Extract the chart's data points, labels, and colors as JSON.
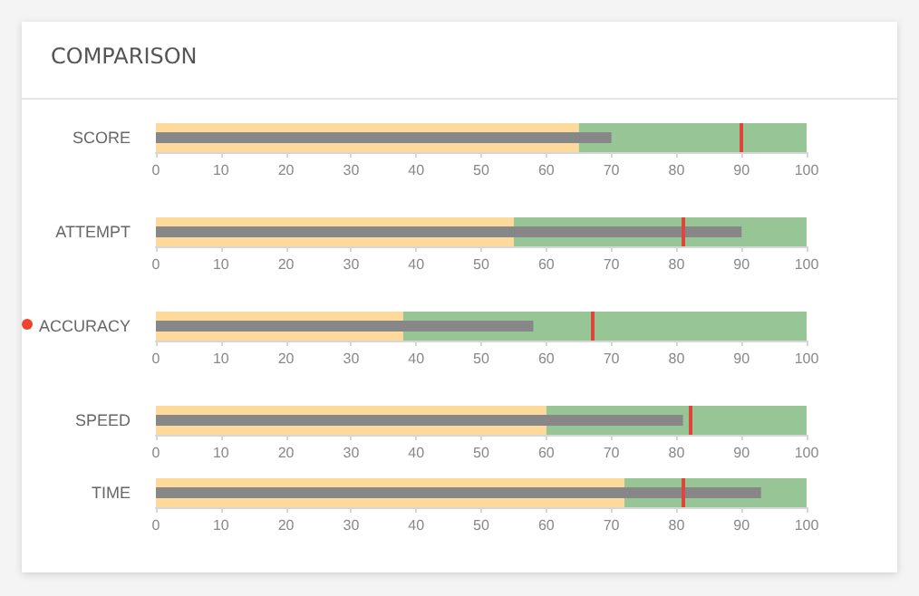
{
  "chart_data": [
    {
      "type": "bar",
      "title": "COMPARISON",
      "orientation": "horizontal",
      "categories": [
        "SCORE"
      ],
      "values": [
        70
      ],
      "color": "#878787",
      "xlim": [
        0,
        100
      ],
      "xticks": [
        0,
        10,
        20,
        30,
        40,
        50,
        60,
        70,
        80,
        90,
        100
      ],
      "bands": [
        {
          "axis": "x",
          "from": 0,
          "to": 65,
          "color": "#fdd99b"
        },
        {
          "axis": "x",
          "from": 65,
          "to": 100,
          "color": "#98c595"
        }
      ],
      "ref_lines": [
        {
          "axis": "x",
          "value": 90,
          "color": "#e0453a"
        }
      ]
    },
    {
      "type": "bar",
      "orientation": "horizontal",
      "categories": [
        "ATTEMPT"
      ],
      "values": [
        90
      ],
      "color": "#878787",
      "xlim": [
        0,
        100
      ],
      "xticks": [
        0,
        10,
        20,
        30,
        40,
        50,
        60,
        70,
        80,
        90,
        100
      ],
      "bands": [
        {
          "axis": "x",
          "from": 0,
          "to": 55,
          "color": "#fdd99b"
        },
        {
          "axis": "x",
          "from": 55,
          "to": 100,
          "color": "#98c595"
        }
      ],
      "ref_lines": [
        {
          "axis": "x",
          "value": 81,
          "color": "#e0453a"
        }
      ]
    },
    {
      "type": "bar",
      "orientation": "horizontal",
      "categories": [
        "ACCURACY"
      ],
      "values": [
        58
      ],
      "color": "#878787",
      "xlim": [
        0,
        100
      ],
      "xticks": [
        0,
        10,
        20,
        30,
        40,
        50,
        60,
        70,
        80,
        90,
        100
      ],
      "bands": [
        {
          "axis": "x",
          "from": 0,
          "to": 38,
          "color": "#fdd99b"
        },
        {
          "axis": "x",
          "from": 38,
          "to": 100,
          "color": "#98c595"
        }
      ],
      "ref_lines": [
        {
          "axis": "x",
          "value": 67,
          "color": "#e0453a"
        }
      ]
    },
    {
      "type": "bar",
      "orientation": "horizontal",
      "categories": [
        "SPEED"
      ],
      "values": [
        81
      ],
      "color": "#878787",
      "xlim": [
        0,
        100
      ],
      "xticks": [
        0,
        10,
        20,
        30,
        40,
        50,
        60,
        70,
        80,
        90,
        100
      ],
      "bands": [
        {
          "axis": "x",
          "from": 0,
          "to": 60,
          "color": "#fdd99b"
        },
        {
          "axis": "x",
          "from": 60,
          "to": 100,
          "color": "#98c595"
        }
      ],
      "ref_lines": [
        {
          "axis": "x",
          "value": 82,
          "color": "#e0453a"
        }
      ]
    },
    {
      "type": "bar",
      "orientation": "horizontal",
      "categories": [
        "TIME"
      ],
      "values": [
        93
      ],
      "color": "#878787",
      "xlim": [
        0,
        100
      ],
      "xticks": [
        0,
        10,
        20,
        30,
        40,
        50,
        60,
        70,
        80,
        90,
        100
      ],
      "bands": [
        {
          "axis": "x",
          "from": 0,
          "to": 72,
          "color": "#fdd99b"
        },
        {
          "axis": "x",
          "from": 72,
          "to": 100,
          "color": "#98c595"
        }
      ],
      "ref_lines": [
        {
          "axis": "x",
          "value": 81,
          "color": "#e0453a"
        }
      ]
    }
  ]
}
